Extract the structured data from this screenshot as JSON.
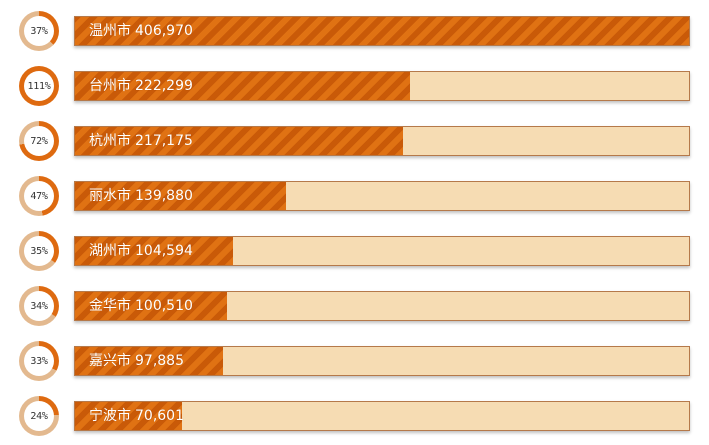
{
  "chart_data": {
    "type": "bar",
    "orientation": "horizontal",
    "categories": [
      "温州市",
      "台州市",
      "杭州市",
      "丽水市",
      "湖州市",
      "金华市",
      "嘉兴市",
      "宁波市"
    ],
    "values": [
      406970,
      222299,
      217175,
      139880,
      104594,
      100510,
      97885,
      70601
    ],
    "value_labels": [
      "406,970",
      "222,299",
      "217,175",
      "139,880",
      "104,594",
      "100,510",
      "97,885",
      "70,601"
    ],
    "percentages": [
      37,
      111,
      72,
      47,
      35,
      34,
      33,
      24
    ],
    "percent_labels": [
      "37%",
      "111%",
      "72%",
      "47%",
      "35%",
      "34%",
      "33%",
      "24%"
    ],
    "xlim": [
      0,
      406970
    ]
  },
  "colors": {
    "fill": "#de6a10",
    "ring_track": "#e3b98f",
    "bar_track": "#f6dcb3"
  }
}
